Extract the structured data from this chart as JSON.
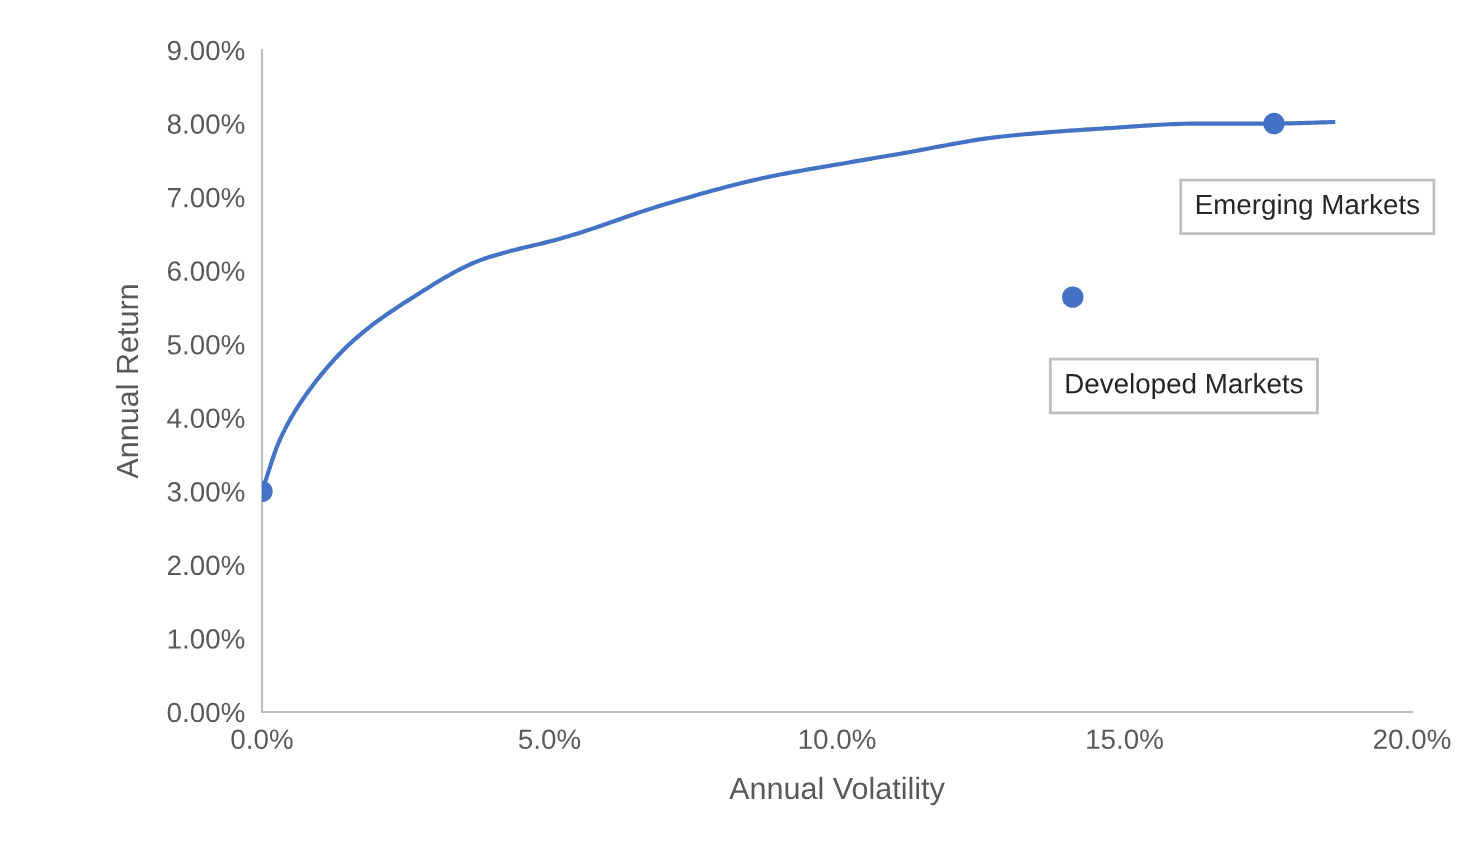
{
  "chart_data": {
    "type": "scatter",
    "xlabel": "Annual Volatility",
    "ylabel": "Annual Return",
    "series": [
      {
        "type": "line",
        "color": "#4472c4",
        "x": [
          0,
          0.31,
          0.78,
          1.59,
          2.63,
          3.79,
          5.3,
          7.04,
          8.78,
          10.05,
          11.1,
          12.83,
          14.57,
          16.31,
          17.59,
          18.63
        ],
        "values": [
          3.0,
          3.7,
          4.33,
          5.05,
          5.64,
          6.14,
          6.46,
          6.91,
          7.27,
          7.45,
          7.59,
          7.82,
          7.93,
          8.0,
          8.0,
          8.02
        ]
      },
      {
        "marker": "circle",
        "color": "#4472c4",
        "x": [
          0,
          17.6,
          14.1
        ],
        "values": [
          3.0,
          8.0,
          5.64
        ]
      }
    ],
    "annotations": [
      {
        "text": "Emerging Markets",
        "x": 17.6,
        "y": 8.0
      },
      {
        "text": "Developed Markets",
        "x": 14.1,
        "y": 5.64
      }
    ],
    "grid": false,
    "xlim": [
      0,
      20
    ],
    "ylim": [
      0,
      9
    ],
    "xticks": [
      {
        "value": 0,
        "label": "0.0%"
      },
      {
        "value": 5,
        "label": "5.0%"
      },
      {
        "value": 10,
        "label": "10.0%"
      },
      {
        "value": 15,
        "label": "15.0%"
      },
      {
        "value": 20,
        "label": "20.0%"
      }
    ],
    "yticks": [
      {
        "value": 0,
        "label": "0.00%"
      },
      {
        "value": 1,
        "label": "1.00%"
      },
      {
        "value": 2,
        "label": "2.00%"
      },
      {
        "value": 3,
        "label": "3.00%"
      },
      {
        "value": 4,
        "label": "4.00%"
      },
      {
        "value": 5,
        "label": "5.00%"
      },
      {
        "value": 6,
        "label": "6.00%"
      },
      {
        "value": 7,
        "label": "7.00%"
      },
      {
        "value": 8,
        "label": "8.00%"
      },
      {
        "value": 9,
        "label": "9.00%"
      }
    ]
  }
}
